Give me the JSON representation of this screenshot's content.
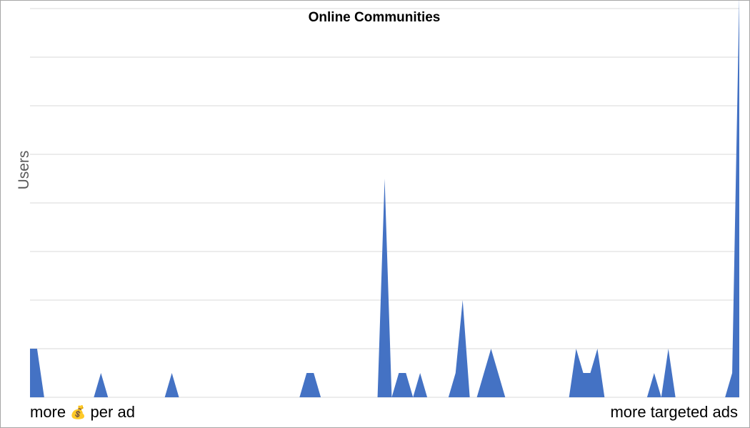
{
  "chart_data": {
    "type": "area",
    "title": "Online Communities",
    "ylabel": "Users",
    "x_left_label": "more",
    "x_left_suffix": "per ad",
    "x_left_icon": "money-bag-icon",
    "x_right_label": "more targeted ads",
    "ylim": [
      0,
      16
    ],
    "y_gridline_step": 2,
    "grid": true,
    "legend": "none",
    "series": [
      {
        "color": "#4472C4",
        "values": [
          2,
          2,
          0,
          0,
          0,
          0,
          0,
          0,
          0,
          0,
          1,
          0,
          0,
          0,
          0,
          0,
          0,
          0,
          0,
          0,
          1,
          0,
          0,
          0,
          0,
          0,
          0,
          0,
          0,
          0,
          0,
          0,
          0,
          0,
          0,
          0,
          0,
          0,
          0,
          1,
          1,
          0,
          0,
          0,
          0,
          0,
          0,
          0,
          0,
          0,
          9,
          0,
          1,
          1,
          0,
          1,
          0,
          0,
          0,
          0,
          1,
          4,
          0,
          0,
          1,
          2,
          1,
          0,
          0,
          0,
          0,
          0,
          0,
          0,
          0,
          0,
          0,
          2,
          1,
          1,
          2,
          0,
          0,
          0,
          0,
          0,
          0,
          0,
          1,
          0,
          2,
          0,
          0,
          0,
          0,
          0,
          0,
          0,
          0,
          1,
          16.5
        ]
      }
    ]
  }
}
